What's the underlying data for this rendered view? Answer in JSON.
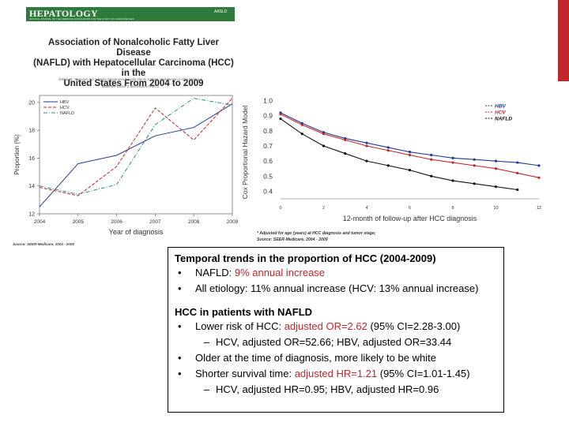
{
  "journal": {
    "name": "HEPATOLOGY",
    "subtitle": "OFFICIAL JOURNAL OF THE AMERICAN ASSOCIATION FOR THE STUDY OF LIVER DISEASES",
    "publisher_mark": "AASLD"
  },
  "paper": {
    "title_lines": [
      "Association of Nonalcoholic Fatty Liver Disease",
      "(NAFLD) with Hepatocellular Carcinoma (HCC) in the",
      "United States From 2004 to 2009"
    ],
    "authors_line1": "Zobair M. Younossi 1,2,3   Maria Stepanova 2   Linda Henry 2   Chris Venkatesan 2   Alita Mishra 1",
    "authors_line2": "Madeline Erario 2   and Sharon Hunt 2"
  },
  "left_source": "Source: SEER-Medicare, 2004 - 2009",
  "right_footnote": {
    "line1": "* Adjusted for age (years) at HCC diagnosis and tumor    stage;",
    "line2": "Source: SEER-Medicare, 2004 - 2009"
  },
  "chart_data": [
    {
      "type": "line",
      "title": "",
      "xlabel": "Year of diagnosis",
      "ylabel": "Proportion (%)",
      "x": [
        2004,
        2005,
        2006,
        2007,
        2008,
        2009
      ],
      "ylim": [
        12,
        20.5
      ],
      "yticks": [
        12,
        14,
        16,
        18,
        20
      ],
      "grid": false,
      "legend_position": "top-left",
      "series": [
        {
          "name": "HBV",
          "color": "#1f3a93",
          "dash": "solid",
          "values": [
            12.5,
            15.6,
            16.2,
            17.6,
            18.2,
            19.9
          ]
        },
        {
          "name": "HCV",
          "color": "#c0272d",
          "dash": "dashed",
          "values": [
            13.9,
            13.3,
            15.4,
            19.6,
            17.3,
            20.3
          ]
        },
        {
          "name": "NAFLD",
          "color": "#2a8c8c",
          "dash": "dashdot",
          "values": [
            14.0,
            13.4,
            14.1,
            18.4,
            20.3,
            19.8
          ]
        }
      ]
    },
    {
      "type": "line",
      "title": "",
      "xlabel": "12-month of follow-up after HCC diagnosis",
      "ylabel": "Cox Proportional Hazard Model",
      "x": [
        0,
        1,
        2,
        3,
        4,
        5,
        6,
        7,
        8,
        9,
        10,
        11,
        12
      ],
      "xticks": [
        0,
        2,
        4,
        6,
        8,
        10,
        12
      ],
      "ylim": [
        0.35,
        1.05
      ],
      "yticks": [
        0.4,
        0.5,
        0.6,
        0.7,
        0.8,
        0.9,
        1.0
      ],
      "grid": false,
      "legend_position": "top-right",
      "series": [
        {
          "name": "HBV",
          "color": "#1f3a93",
          "values": [
            0.92,
            0.85,
            0.79,
            0.75,
            0.72,
            0.69,
            0.66,
            0.64,
            0.62,
            0.61,
            0.6,
            0.59,
            0.57
          ]
        },
        {
          "name": "HCV",
          "color": "#c0272d",
          "values": [
            0.91,
            0.84,
            0.78,
            0.74,
            0.7,
            0.67,
            0.64,
            0.61,
            0.59,
            0.57,
            0.55,
            0.52,
            0.49
          ]
        },
        {
          "name": "NAFLD",
          "color": "#111111",
          "values": [
            0.88,
            0.78,
            0.7,
            0.65,
            0.6,
            0.57,
            0.54,
            0.5,
            0.47,
            0.45,
            0.43,
            0.41,
            null
          ]
        }
      ]
    }
  ],
  "summary": {
    "section1_title": "Temporal trends in the proportion of HCC (2004-2009)",
    "section1_items": [
      {
        "bullet": "•",
        "label": "NAFLD: ",
        "highlight": "9% annual increase"
      },
      {
        "bullet": "•",
        "label": "All etiology: 11% annual increase (HCV: 13% annual increase)"
      }
    ],
    "section2_title": "HCC in patients with NAFLD",
    "s2_item1_bullet": "•",
    "s2_item1_pre": "Lower risk of HCC: ",
    "s2_item1_hl": "adjusted OR=2.62",
    "s2_item1_post": " (95% CI=2.28-3.00)",
    "s2_sub1_dash": "–",
    "s2_sub1": "HCV, adjusted OR=52.66; HBV, adjusted OR=33.44",
    "s2_item2_bullet": "•",
    "s2_item2": "Older at the time of diagnosis, more likely to be white",
    "s2_item3_bullet": "•",
    "s2_item3_pre": "Shorter survival time: ",
    "s2_item3_hl": "adjusted HR=1.21",
    "s2_item3_post": " (95% CI=1.01-1.45)",
    "s2_sub2_dash": "–",
    "s2_sub2": "HCV, adjusted HR=0.95; HBV, adjusted HR=0.96"
  }
}
